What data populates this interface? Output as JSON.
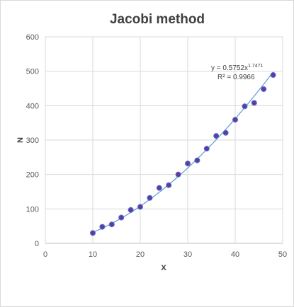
{
  "chart_data": {
    "type": "scatter",
    "title": "Jacobi method",
    "xlabel": "X",
    "ylabel": "N",
    "xlim": [
      0,
      50
    ],
    "ylim": [
      0,
      600
    ],
    "x_ticks": [
      "0",
      "10",
      "20",
      "30",
      "40",
      "50"
    ],
    "y_ticks": [
      "0",
      "100",
      "200",
      "300",
      "400",
      "500",
      "600"
    ],
    "grid": true,
    "series": [
      {
        "points": [
          {
            "x": 10,
            "y": 30
          },
          {
            "x": 12,
            "y": 48
          },
          {
            "x": 14,
            "y": 55
          },
          {
            "x": 16,
            "y": 75
          },
          {
            "x": 18,
            "y": 97
          },
          {
            "x": 20,
            "y": 106
          },
          {
            "x": 22,
            "y": 132
          },
          {
            "x": 24,
            "y": 161
          },
          {
            "x": 26,
            "y": 169
          },
          {
            "x": 28,
            "y": 200
          },
          {
            "x": 30,
            "y": 232
          },
          {
            "x": 32,
            "y": 241
          },
          {
            "x": 34,
            "y": 275
          },
          {
            "x": 36,
            "y": 312
          },
          {
            "x": 38,
            "y": 321
          },
          {
            "x": 40,
            "y": 359
          },
          {
            "x": 42,
            "y": 398
          },
          {
            "x": 44,
            "y": 408
          },
          {
            "x": 46,
            "y": 448
          },
          {
            "x": 48,
            "y": 489
          }
        ],
        "color": "#7030a0"
      }
    ],
    "trendline": {
      "type": "power",
      "coefficient": 0.5752,
      "exponent": 1.7471,
      "x_range": [
        10,
        48
      ],
      "color": "#5b9bd5",
      "equation_main": "y = 0.5752x",
      "equation_exponent": "1.7471",
      "r_squared": "R² = 0.9966"
    }
  }
}
